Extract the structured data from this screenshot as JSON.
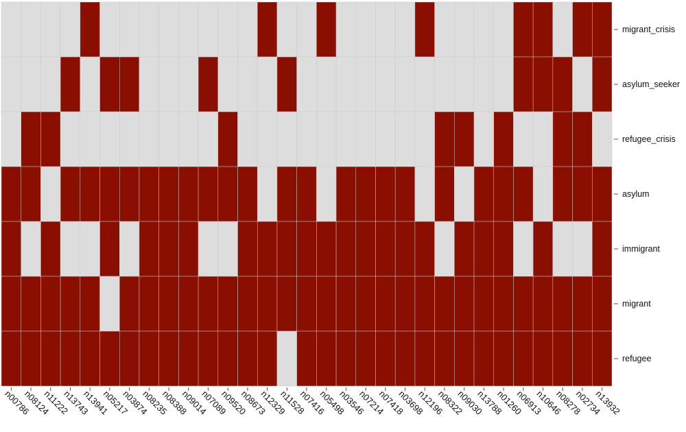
{
  "chart_data": {
    "type": "heatmap",
    "x": [
      "n00786",
      "n08124",
      "n11222",
      "n13743",
      "n13941",
      "n05217",
      "n03874",
      "n08235",
      "n08388",
      "n09014",
      "n07089",
      "n09520",
      "n08673",
      "n12329",
      "n11528",
      "n07416",
      "n05498",
      "n03546",
      "n07214",
      "n07418",
      "n03698",
      "n12196",
      "n08322",
      "n09030",
      "n13788",
      "n01260",
      "n06913",
      "n10646",
      "n08278",
      "n02734",
      "n13932"
    ],
    "y": [
      "migrant_crisis",
      "asylum_seeker",
      "refugee_crisis",
      "asylum",
      "immigrant",
      "migrant",
      "refugee"
    ],
    "values": [
      [
        0,
        0,
        0,
        0,
        1,
        0,
        0,
        0,
        0,
        0,
        0,
        0,
        0,
        1,
        0,
        0,
        1,
        0,
        0,
        0,
        0,
        1,
        0,
        0,
        0,
        0,
        1,
        1,
        0,
        1,
        1
      ],
      [
        0,
        0,
        0,
        1,
        0,
        1,
        1,
        0,
        0,
        0,
        1,
        0,
        0,
        0,
        1,
        0,
        0,
        0,
        0,
        0,
        0,
        0,
        0,
        0,
        0,
        0,
        1,
        1,
        1,
        0,
        1
      ],
      [
        0,
        1,
        1,
        0,
        0,
        0,
        0,
        0,
        0,
        0,
        0,
        1,
        0,
        0,
        0,
        0,
        0,
        0,
        0,
        0,
        0,
        0,
        1,
        1,
        0,
        1,
        0,
        0,
        1,
        1,
        0
      ],
      [
        1,
        1,
        0,
        1,
        1,
        1,
        1,
        1,
        1,
        1,
        1,
        1,
        1,
        0,
        1,
        1,
        0,
        1,
        1,
        1,
        1,
        0,
        1,
        0,
        1,
        1,
        1,
        0,
        1,
        1,
        1
      ],
      [
        1,
        0,
        1,
        0,
        0,
        1,
        0,
        1,
        1,
        1,
        0,
        0,
        1,
        1,
        1,
        1,
        1,
        1,
        1,
        1,
        1,
        1,
        0,
        1,
        1,
        1,
        0,
        1,
        0,
        0,
        1
      ],
      [
        1,
        1,
        1,
        1,
        1,
        0,
        1,
        1,
        1,
        1,
        1,
        1,
        1,
        1,
        1,
        1,
        1,
        1,
        1,
        1,
        1,
        1,
        1,
        1,
        1,
        1,
        1,
        1,
        1,
        1,
        1
      ],
      [
        1,
        1,
        1,
        1,
        1,
        1,
        1,
        1,
        1,
        1,
        1,
        1,
        1,
        1,
        0,
        1,
        1,
        1,
        1,
        1,
        1,
        1,
        1,
        1,
        1,
        1,
        1,
        1,
        1,
        1,
        1
      ]
    ],
    "colors": [
      "#dddddd",
      "#8b0f00"
    ]
  }
}
